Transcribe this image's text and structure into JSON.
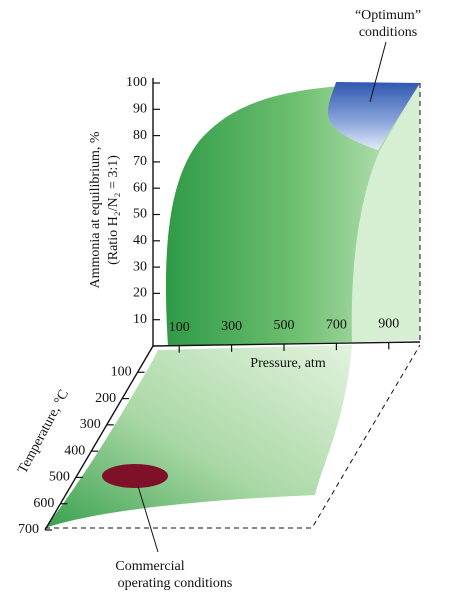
{
  "chart_data": {
    "type": "surface",
    "ylabel": "Ammonia at equilibrium, %",
    "ylabel2": "(Ratio H₂/N₂ = 3:1)",
    "xlabel": "Pressure, atm",
    "zlabel": "Temperature, °C",
    "ylim": [
      0,
      100
    ],
    "yticks": [
      10,
      20,
      30,
      40,
      50,
      60,
      70,
      80,
      90,
      100
    ],
    "xlim": [
      0,
      1000
    ],
    "xticks": [
      100,
      300,
      500,
      700,
      900
    ],
    "zlim": [
      0,
      700
    ],
    "zticks": [
      100,
      200,
      300,
      400,
      500,
      600,
      700
    ],
    "annotations": [
      "“Optimum”",
      "conditions",
      "Commercial",
      "operating conditions"
    ]
  }
}
